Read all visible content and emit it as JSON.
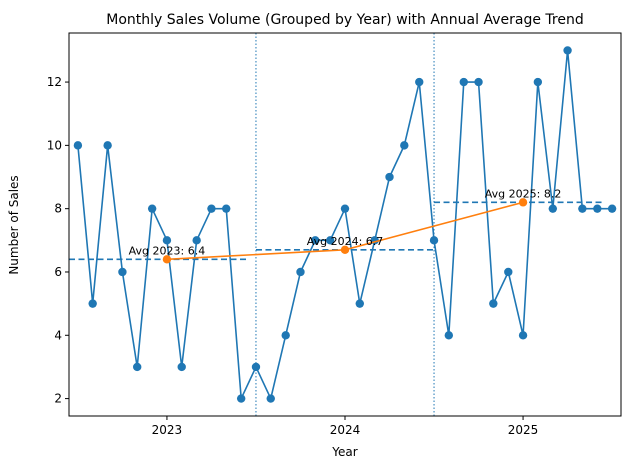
{
  "chart_data": {
    "type": "line",
    "title": "Monthly Sales Volume (Grouped by Year) with Annual Average Trend",
    "xlabel": "Year",
    "ylabel": "Number of Sales",
    "x_ticks": [
      "2023",
      "2024",
      "2025"
    ],
    "x_tick_values": [
      2023,
      2024,
      2025
    ],
    "xlim": [
      2022.45,
      2025.55
    ],
    "y_ticks": [
      2,
      4,
      6,
      8,
      10,
      12
    ],
    "ylim": [
      1.45,
      13.55
    ],
    "grid": false,
    "legend": "none",
    "monthly_series": {
      "color": "#1f77b4",
      "x": [
        2022.5,
        2022.583,
        2022.667,
        2022.75,
        2022.833,
        2022.917,
        2023.0,
        2023.083,
        2023.167,
        2023.25,
        2023.333,
        2023.417,
        2023.5,
        2023.583,
        2023.667,
        2023.75,
        2023.833,
        2023.917,
        2024.0,
        2024.083,
        2024.167,
        2024.25,
        2024.333,
        2024.417,
        2024.5,
        2024.583,
        2024.667,
        2024.75,
        2024.833,
        2024.917,
        2025.0,
        2025.083,
        2025.167,
        2025.25,
        2025.333,
        2025.417,
        2025.5
      ],
      "y": [
        10,
        5,
        10,
        6,
        3,
        8,
        7,
        3,
        7,
        8,
        8,
        2,
        3,
        2,
        4,
        6,
        7,
        7,
        8,
        5,
        7,
        9,
        10,
        12,
        7,
        4,
        12,
        12,
        5,
        6,
        4,
        12,
        8,
        13,
        8,
        8,
        8
      ]
    },
    "annual_average_series": {
      "color": "#ff7f0e",
      "x": [
        2023,
        2024,
        2025
      ],
      "y": [
        6.4,
        6.7,
        8.2
      ]
    },
    "annual_average_lines": [
      {
        "x_start": 2022.45,
        "x_end": 2023.45,
        "y": 6.4,
        "color": "#1f77b4"
      },
      {
        "x_start": 2023.5,
        "x_end": 2024.5,
        "y": 6.7,
        "color": "#1f77b4"
      },
      {
        "x_start": 2024.5,
        "x_end": 2025.45,
        "y": 8.2,
        "color": "#1f77b4"
      }
    ],
    "year_boundaries": [
      2023.5,
      2024.5
    ],
    "annotations": [
      {
        "text": "Avg 2023: 6.4",
        "x": 2023.0,
        "y": 6.4
      },
      {
        "text": "Avg 2024: 6.7",
        "x": 2024.0,
        "y": 6.7
      },
      {
        "text": "Avg 2025: 8.2",
        "x": 2025.0,
        "y": 8.2
      }
    ]
  }
}
